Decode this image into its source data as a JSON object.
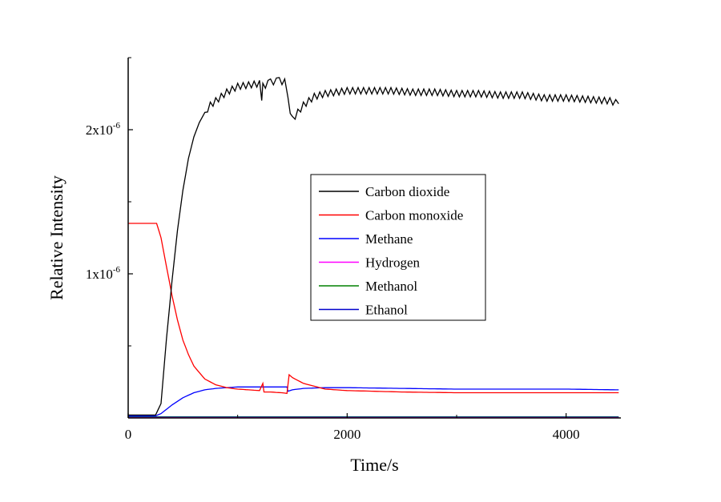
{
  "chart_data": {
    "type": "line",
    "xlabel": "Time/s",
    "ylabel": "Relative Intensity",
    "xlim": [
      0,
      4500
    ],
    "ylim": [
      0,
      2.5e-06
    ],
    "x_ticks": [
      {
        "value": 0,
        "label": "0"
      },
      {
        "value": 2000,
        "label": "2000"
      },
      {
        "value": 4000,
        "label": "4000"
      }
    ],
    "y_ticks": [
      {
        "value": 1e-06,
        "base": "1x10",
        "exp": "-6"
      },
      {
        "value": 2e-06,
        "base": "2x10",
        "exp": "-6"
      }
    ],
    "legend_position": "center",
    "series": [
      {
        "name": "Carbon dioxide",
        "color": "#000000",
        "x": [
          0,
          250,
          300,
          350,
          400,
          450,
          500,
          550,
          600,
          650,
          700,
          750,
          800,
          900,
          1000,
          1100,
          1200,
          1220,
          1230,
          1300,
          1380,
          1430,
          1460,
          1500,
          1550,
          1600,
          1700,
          1800,
          1900,
          2000,
          2200,
          2400,
          2600,
          2800,
          3000,
          3200,
          3400,
          3600,
          3800,
          4000,
          4200,
          4400,
          4480
        ],
        "y": [
          2e-08,
          2e-08,
          1e-07,
          5.5e-07,
          9.5e-07,
          1.3e-06,
          1.58e-06,
          1.8e-06,
          1.95e-06,
          2.05e-06,
          2.12e-06,
          2.17e-06,
          2.2e-06,
          2.26e-06,
          2.3e-06,
          2.31e-06,
          2.32e-06,
          2.18e-06,
          2.3e-06,
          2.33e-06,
          2.34e-06,
          2.33e-06,
          2.2e-06,
          2.07e-06,
          2.12e-06,
          2.17e-06,
          2.23e-06,
          2.25e-06,
          2.26e-06,
          2.27e-06,
          2.27e-06,
          2.27e-06,
          2.26e-06,
          2.26e-06,
          2.25e-06,
          2.25e-06,
          2.24e-06,
          2.24e-06,
          2.22e-06,
          2.22e-06,
          2.21e-06,
          2.2e-06,
          2.18e-06
        ]
      },
      {
        "name": "Carbon monoxide",
        "color": "#ff0000",
        "x": [
          0,
          260,
          300,
          350,
          400,
          450,
          500,
          550,
          600,
          700,
          800,
          900,
          1000,
          1100,
          1200,
          1230,
          1240,
          1300,
          1400,
          1450,
          1470,
          1500,
          1600,
          1800,
          2000,
          2500,
          3000,
          3500,
          4000,
          4480
        ],
        "y": [
          1.35e-06,
          1.35e-06,
          1.25e-06,
          1.05e-06,
          8.5e-07,
          6.8e-07,
          5.4e-07,
          4.4e-07,
          3.6e-07,
          2.7e-07,
          2.3e-07,
          2.1e-07,
          2e-07,
          1.95e-07,
          1.9e-07,
          2.4e-07,
          1.8e-07,
          1.8e-07,
          1.75e-07,
          1.7e-07,
          3e-07,
          2.8e-07,
          2.4e-07,
          2e-07,
          1.9e-07,
          1.8e-07,
          1.75e-07,
          1.75e-07,
          1.75e-07,
          1.75e-07
        ]
      },
      {
        "name": "Methane",
        "color": "#0000ff",
        "x": [
          0,
          250,
          300,
          400,
          500,
          600,
          700,
          800,
          900,
          1000,
          1200,
          1450,
          1460,
          1500,
          1600,
          1800,
          2000,
          2500,
          3000,
          3500,
          4000,
          4480
        ],
        "y": [
          1.5e-08,
          1.5e-08,
          3e-08,
          9e-08,
          1.4e-07,
          1.75e-07,
          1.95e-07,
          2.05e-07,
          2.1e-07,
          2.15e-07,
          2.15e-07,
          2.15e-07,
          1.85e-07,
          1.95e-07,
          2.05e-07,
          2.1e-07,
          2.1e-07,
          2.05e-07,
          2e-07,
          2e-07,
          2e-07,
          1.95e-07
        ]
      },
      {
        "name": "Hydrogen",
        "color": "#ff00ff",
        "x": [
          0,
          4480
        ],
        "y": [
          2e-09,
          2e-09
        ]
      },
      {
        "name": "Methanol",
        "color": "#008000",
        "x": [
          0,
          4480
        ],
        "y": [
          5e-09,
          5e-09
        ]
      },
      {
        "name": "Ethanol",
        "color": "#0000cc",
        "x": [
          0,
          4480
        ],
        "y": [
          8e-09,
          8e-09
        ]
      }
    ]
  }
}
